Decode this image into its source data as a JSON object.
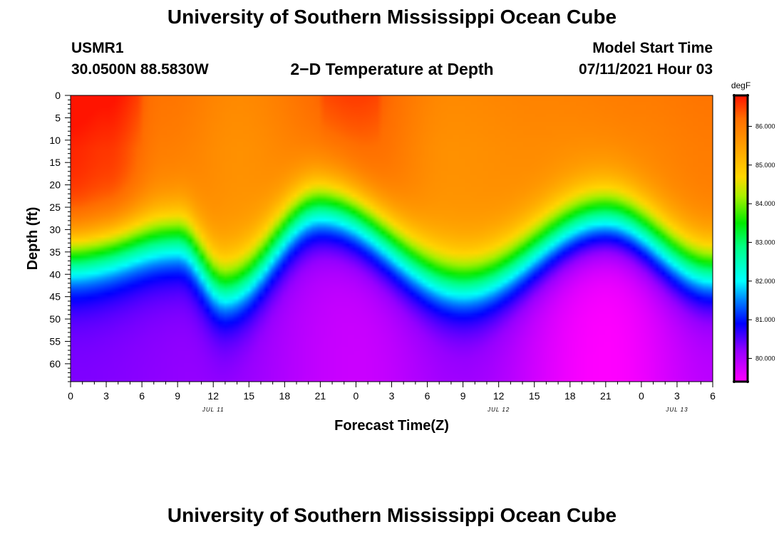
{
  "header": {
    "title_top": "University of Southern Mississippi Ocean Cube",
    "title_bottom": "University of Southern Mississippi Ocean Cube",
    "station_id": "USMR1",
    "coordinates": "30.0500N  88.5830W",
    "plot_title": "2−D Temperature at Depth",
    "model_start_label": "Model Start Time",
    "model_start_value": "07/11/2021 Hour 03"
  },
  "chart_data": {
    "type": "heatmap",
    "title": "2−D Temperature at Depth",
    "xlabel": "Forecast Time(Z)",
    "ylabel": "Depth (ft)",
    "x_tick_labels": [
      "0",
      "3",
      "6",
      "9",
      "12",
      "15",
      "18",
      "21",
      "0",
      "3",
      "6",
      "9",
      "12",
      "15",
      "18",
      "21",
      "0",
      "3",
      "6"
    ],
    "x_hours": [
      0,
      3,
      6,
      9,
      12,
      15,
      18,
      21,
      24,
      27,
      30,
      33,
      36,
      39,
      42,
      45,
      48,
      51,
      54
    ],
    "date_labels": [
      {
        "label": "JUL 11",
        "hour": 12
      },
      {
        "label": "JUL 12",
        "hour": 36
      },
      {
        "label": "JUL 13",
        "hour": 51
      }
    ],
    "y_tick_labels": [
      "0",
      "5",
      "10",
      "15",
      "20",
      "25",
      "30",
      "35",
      "40",
      "45",
      "50",
      "55",
      "60"
    ],
    "y_depths": [
      0,
      5,
      10,
      15,
      20,
      25,
      30,
      35,
      40,
      45,
      50,
      55,
      60
    ],
    "xlim": [
      0,
      54
    ],
    "ylim": [
      0,
      64
    ],
    "colorbar": {
      "unit": "degF",
      "tick_labels": [
        "80.000",
        "81.000",
        "82.000",
        "83.000",
        "84.000",
        "85.000",
        "86.000"
      ],
      "tick_values": [
        80,
        81,
        82,
        83,
        84,
        85,
        86
      ],
      "range": [
        79.4,
        86.8
      ]
    },
    "thermocline_depth_ft": {
      "hours": [
        0,
        9,
        13,
        21,
        33,
        45,
        54
      ],
      "depths": [
        36,
        32,
        43,
        25,
        42,
        27,
        39
      ]
    },
    "surface_temp_degF": {
      "hours": [
        0,
        3,
        8,
        14,
        24,
        32,
        40,
        48,
        54
      ],
      "temps": [
        86.7,
        86.6,
        86.0,
        85.7,
        86.3,
        85.7,
        85.8,
        85.9,
        86.0
      ]
    },
    "bottom_temp_degF": {
      "hours": [
        0,
        12,
        24,
        33,
        45,
        54
      ],
      "temps": [
        80.3,
        80.2,
        79.8,
        80.1,
        79.4,
        79.9
      ]
    }
  }
}
